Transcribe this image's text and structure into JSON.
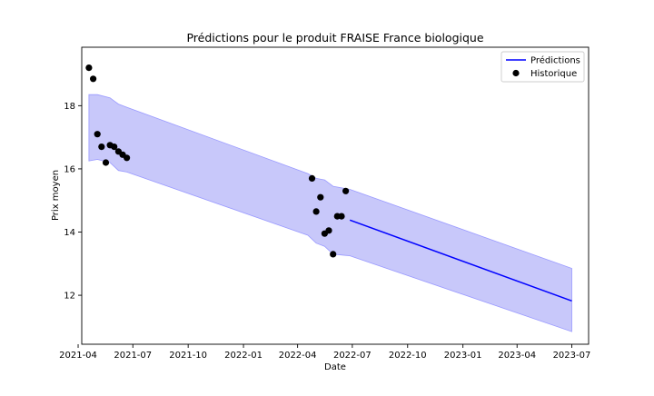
{
  "chart_data": {
    "type": "line",
    "title": "Prédictions pour le produit FRAISE France biologique",
    "xlabel": "Date",
    "ylabel": "Prix moyen",
    "x_type": "date",
    "xlim": [
      "2021-04-07",
      "2023-07-29"
    ],
    "ylim": [
      10.45,
      19.85
    ],
    "x_ticks": [
      "2021-04-01",
      "2021-07-01",
      "2021-10-01",
      "2022-01-01",
      "2022-04-01",
      "2022-07-01",
      "2022-10-01",
      "2023-01-01",
      "2023-04-01",
      "2023-07-01"
    ],
    "x_tick_labels": [
      "2021-04",
      "2021-07",
      "2021-10",
      "2022-01",
      "2022-04",
      "2022-07",
      "2022-10",
      "2023-01",
      "2023-04",
      "2023-07"
    ],
    "y_ticks": [
      12,
      14,
      16,
      18
    ],
    "y_tick_labels": [
      "12",
      "14",
      "16",
      "18"
    ],
    "grid": false,
    "legend_position": "top-right",
    "colors": {
      "prediction": "#0000ff",
      "band_fill": "#c8c8fa",
      "band_edge": "#9999ff",
      "history": "#000000"
    },
    "series": [
      {
        "name": "Prédictions",
        "kind": "line",
        "x": [
          "2022-06-27",
          "2023-07-01"
        ],
        "y": [
          14.38,
          11.82
        ]
      },
      {
        "name": "Historique",
        "kind": "scatter",
        "x": [
          "2021-04-19",
          "2021-04-26",
          "2021-05-03",
          "2021-05-10",
          "2021-05-17",
          "2021-05-24",
          "2021-05-31",
          "2021-06-07",
          "2021-06-14",
          "2021-06-21",
          "2022-04-25",
          "2022-05-02",
          "2022-05-09",
          "2022-05-16",
          "2022-05-23",
          "2022-05-30",
          "2022-06-06",
          "2022-06-13",
          "2022-06-20"
        ],
        "y": [
          19.2,
          18.85,
          17.1,
          16.7,
          16.2,
          16.75,
          16.7,
          16.55,
          16.45,
          16.35,
          15.7,
          14.65,
          15.1,
          13.95,
          14.05,
          13.3,
          14.5,
          14.5,
          15.3
        ]
      },
      {
        "kind": "band",
        "x": [
          "2021-04-19",
          "2021-05-03",
          "2021-05-24",
          "2021-06-07",
          "2021-06-21",
          "2022-04-18",
          "2022-05-02",
          "2022-05-16",
          "2022-05-30",
          "2022-06-27",
          "2023-07-01"
        ],
        "lower": [
          16.25,
          16.3,
          16.2,
          15.95,
          15.9,
          13.9,
          13.65,
          13.55,
          13.3,
          13.25,
          10.85
        ],
        "upper": [
          18.35,
          18.35,
          18.25,
          18.05,
          17.95,
          15.85,
          15.7,
          15.65,
          15.45,
          15.35,
          12.85
        ]
      }
    ]
  }
}
